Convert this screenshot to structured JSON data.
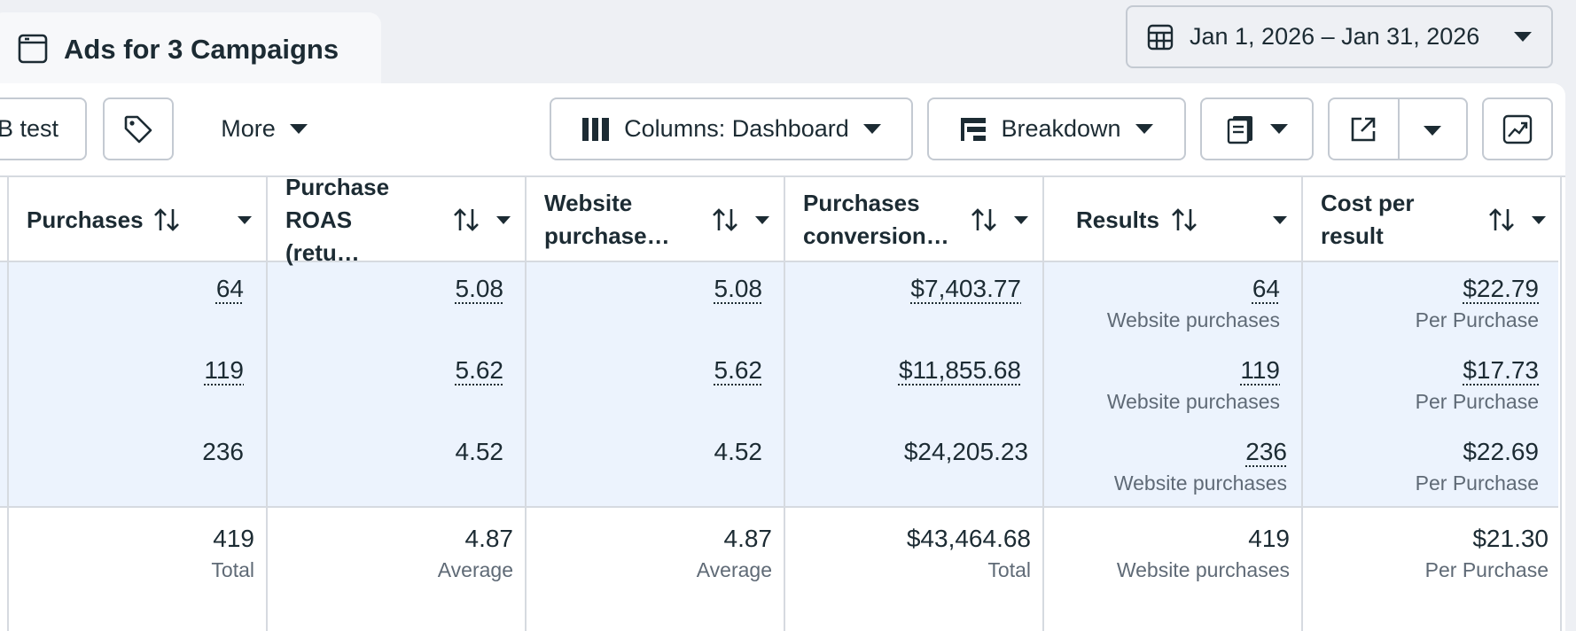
{
  "tab": {
    "title": "Ads for 3 Campaigns"
  },
  "date_range": {
    "label": "Jan 1, 2026 – Jan 31, 2026"
  },
  "toolbar": {
    "ab_test_label": "A/B test",
    "more_label": "More",
    "columns_label": "Columns: Dashboard",
    "breakdown_label": "Breakdown"
  },
  "table": {
    "columns": [
      {
        "label": "Purchases"
      },
      {
        "label": "Purchase ROAS (retu…"
      },
      {
        "label": "Website purchase…"
      },
      {
        "label": "Purchases conversion…"
      },
      {
        "label": "Results"
      },
      {
        "label": "Cost per result"
      }
    ],
    "rows": [
      {
        "purchases": "64",
        "roas": "5.08",
        "website": "5.08",
        "conversion": "$7,403.77",
        "results": "64",
        "results_sub": "Website purchases",
        "cost": "$22.79",
        "cost_sub": "Per Purchase"
      },
      {
        "purchases": "119",
        "roas": "5.62",
        "website": "5.62",
        "conversion": "$11,855.68",
        "results": "119",
        "results_sub": "Website purchases",
        "cost": "$17.73",
        "cost_sub": "Per Purchase"
      },
      {
        "purchases": "236",
        "roas": "4.52",
        "website": "4.52",
        "conversion": "$24,205.23",
        "results": "236",
        "results_sub": "Website purchases",
        "cost": "$22.69",
        "cost_sub": "Per Purchase"
      }
    ],
    "totals": {
      "purchases": "419",
      "purchases_sub": "Total",
      "roas": "4.87",
      "roas_sub": "Average",
      "website": "4.87",
      "website_sub": "Average",
      "conversion": "$43,464.68",
      "conversion_sub": "Total",
      "results": "419",
      "results_sub": "Website purchases",
      "cost": "$21.30",
      "cost_sub": "Per Purchase"
    }
  },
  "icons": {
    "tab": "window-icon",
    "date": "calendar-grid-icon",
    "tag": "tag-icon",
    "columns": "columns-icon",
    "breakdown": "breakdown-icon",
    "reports": "reports-icon",
    "export": "export-icon",
    "chart": "trend-chart-icon",
    "sort": "sort-arrows-icon"
  },
  "colors": {
    "selected_row_bg": "#ecf3fd",
    "text": "#1c2b33",
    "muted": "#5f6a76",
    "border": "#c4cad2"
  }
}
